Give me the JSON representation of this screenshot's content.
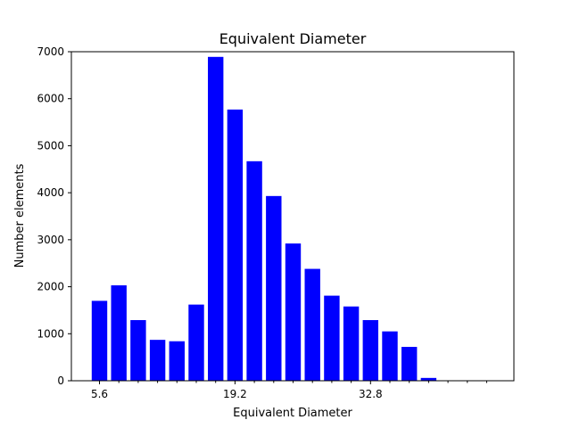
{
  "chart_data": {
    "type": "bar",
    "title": "Equivalent Diameter",
    "xlabel": "Equivalent Diameter",
    "ylabel": "Number elements",
    "bar_color": "#0000ff",
    "x_tick_labels": [
      "5.6",
      "19.2",
      "32.8"
    ],
    "y_ticks": [
      0,
      1000,
      2000,
      3000,
      4000,
      5000,
      6000,
      7000
    ],
    "ylim": [
      0,
      7000
    ],
    "values": [
      1700,
      2030,
      1290,
      870,
      840,
      1620,
      6890,
      5770,
      4670,
      3930,
      2920,
      2380,
      1810,
      1580,
      1290,
      1050,
      720,
      60,
      0,
      0,
      0
    ],
    "grid": false
  }
}
